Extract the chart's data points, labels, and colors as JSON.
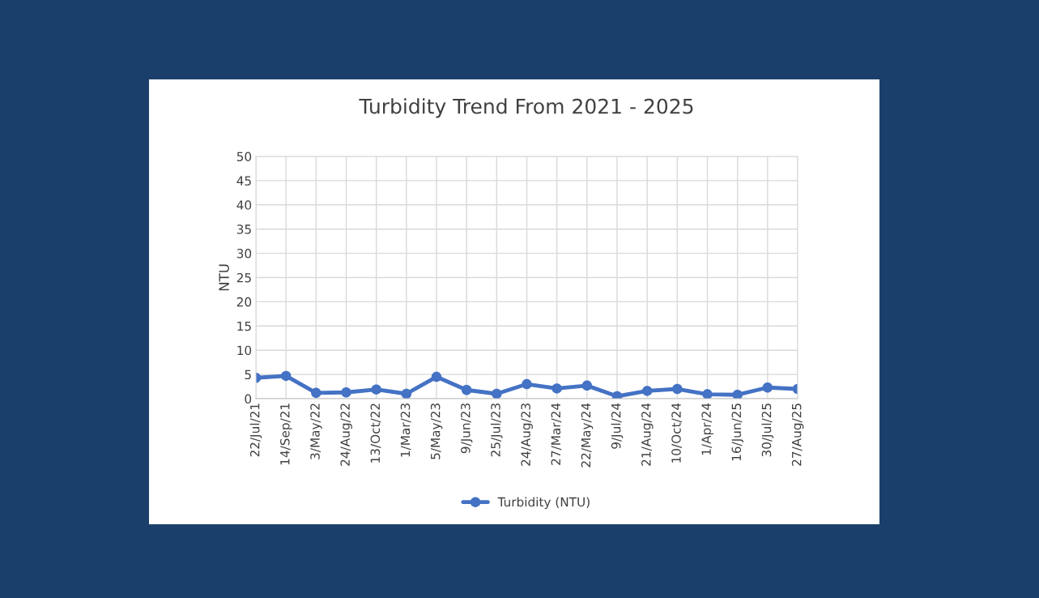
{
  "chart_data": {
    "type": "line",
    "title": "Turbidity Trend From 2021 - 2025",
    "ylabel": "NTU",
    "categories": [
      "22/Jul/21",
      "14/Sep/21",
      "3/May/22",
      "24/Aug/22",
      "13/Oct/22",
      "1/Mar/23",
      "5/May/23",
      "9/Jun/23",
      "25/Jul/23",
      "24/Aug/23",
      "27/Mar/24",
      "22/May/24",
      "9/Jul/24",
      "21/Aug/24",
      "10/Oct/24",
      "1/Apr/24",
      "16/Jun/25",
      "30/Jul/25",
      "27/Aug/25"
    ],
    "series": [
      {
        "name": "Turbidity (NTU)",
        "color": "#4472c4",
        "values": [
          4.3,
          4.7,
          1.2,
          1.3,
          1.9,
          1.0,
          4.5,
          1.8,
          1.0,
          3.0,
          2.1,
          2.7,
          0.5,
          1.6,
          2.0,
          0.9,
          0.8,
          2.3,
          2.0
        ]
      }
    ],
    "ylim": [
      0,
      50
    ],
    "yticks": [
      0,
      5,
      10,
      15,
      20,
      25,
      30,
      35,
      40,
      45,
      50
    ],
    "grid": true,
    "legend": "bottom",
    "marker": "circle",
    "line_style": "solid"
  }
}
